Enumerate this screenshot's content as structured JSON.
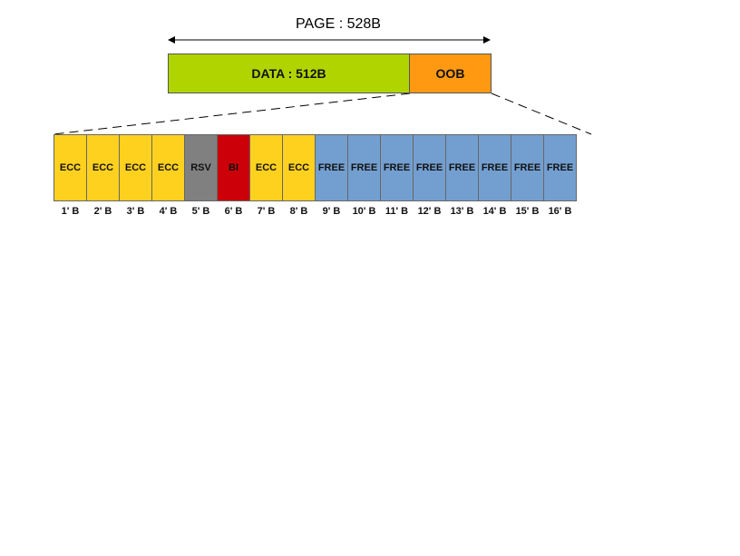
{
  "page": {
    "label": "PAGE : 528B"
  },
  "data_region": {
    "label": "DATA : 512B",
    "color": "#b0d400"
  },
  "oob_region": {
    "label": "OOB",
    "color": "#ff9912"
  },
  "colors": {
    "ecc": "#ffd11f",
    "rsv": "#808080",
    "bi": "#cc0008",
    "free": "#739fd0"
  },
  "oob_bytes": [
    {
      "name": "ECC",
      "type": "ecc",
      "label": "1' B"
    },
    {
      "name": "ECC",
      "type": "ecc",
      "label": "2' B"
    },
    {
      "name": "ECC",
      "type": "ecc",
      "label": "3' B"
    },
    {
      "name": "ECC",
      "type": "ecc",
      "label": "4' B"
    },
    {
      "name": "RSV",
      "type": "rsv",
      "label": "5' B"
    },
    {
      "name": "BI",
      "type": "bi",
      "label": "6' B"
    },
    {
      "name": "ECC",
      "type": "ecc",
      "label": "7' B"
    },
    {
      "name": "ECC",
      "type": "ecc",
      "label": "8' B"
    },
    {
      "name": "FREE",
      "type": "free",
      "label": "9' B"
    },
    {
      "name": "FREE",
      "type": "free",
      "label": "10' B"
    },
    {
      "name": "FREE",
      "type": "free",
      "label": "11' B"
    },
    {
      "name": "FREE",
      "type": "free",
      "label": "12' B"
    },
    {
      "name": "FREE",
      "type": "free",
      "label": "13' B"
    },
    {
      "name": "FREE",
      "type": "free",
      "label": "14' B"
    },
    {
      "name": "FREE",
      "type": "free",
      "label": "15' B"
    },
    {
      "name": "FREE",
      "type": "free",
      "label": "16' B"
    }
  ]
}
